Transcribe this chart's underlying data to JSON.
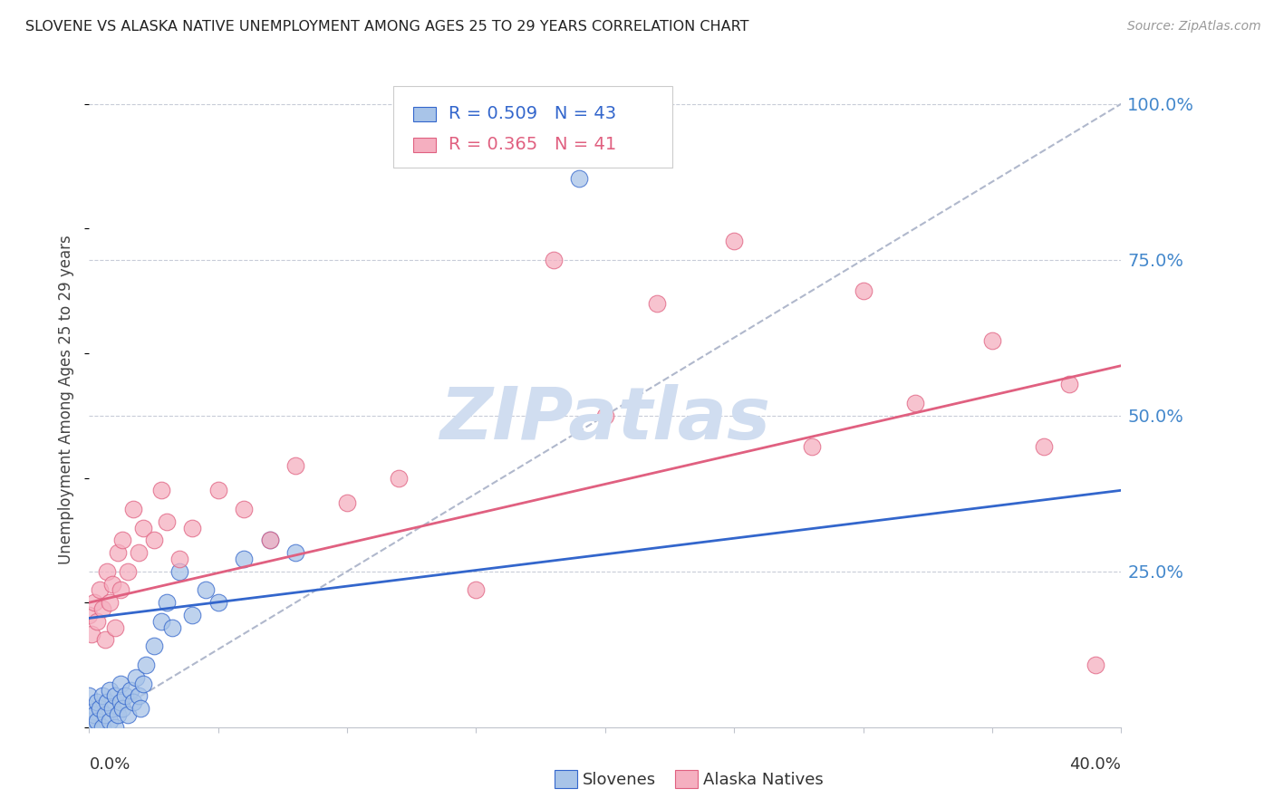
{
  "title": "SLOVENE VS ALASKA NATIVE UNEMPLOYMENT AMONG AGES 25 TO 29 YEARS CORRELATION CHART",
  "source": "Source: ZipAtlas.com",
  "ylabel": "Unemployment Among Ages 25 to 29 years",
  "right_yticks": [
    "100.0%",
    "75.0%",
    "50.0%",
    "25.0%"
  ],
  "right_ytick_vals": [
    1.0,
    0.75,
    0.5,
    0.25
  ],
  "xlim": [
    0.0,
    0.4
  ],
  "ylim": [
    0.0,
    1.05
  ],
  "slovene_color": "#a8c4e8",
  "alaska_color": "#f5afc0",
  "slovene_line_color": "#3366cc",
  "alaska_line_color": "#e06080",
  "dashed_line_color": "#b0b8cc",
  "background_color": "#ffffff",
  "grid_color": "#c8ccd8",
  "watermark_color": "#d0ddf0",
  "watermark_text": "ZIPatlas",
  "slovene_scatter_x": [
    0.0,
    0.0,
    0.0,
    0.0,
    0.001,
    0.002,
    0.003,
    0.003,
    0.004,
    0.005,
    0.005,
    0.006,
    0.007,
    0.008,
    0.008,
    0.009,
    0.01,
    0.01,
    0.011,
    0.012,
    0.012,
    0.013,
    0.014,
    0.015,
    0.016,
    0.017,
    0.018,
    0.019,
    0.02,
    0.021,
    0.022,
    0.025,
    0.028,
    0.03,
    0.032,
    0.035,
    0.04,
    0.045,
    0.05,
    0.06,
    0.07,
    0.08,
    0.19
  ],
  "slovene_scatter_y": [
    0.0,
    0.01,
    0.03,
    0.05,
    0.0,
    0.02,
    0.01,
    0.04,
    0.03,
    0.0,
    0.05,
    0.02,
    0.04,
    0.01,
    0.06,
    0.03,
    0.0,
    0.05,
    0.02,
    0.04,
    0.07,
    0.03,
    0.05,
    0.02,
    0.06,
    0.04,
    0.08,
    0.05,
    0.03,
    0.07,
    0.1,
    0.13,
    0.17,
    0.2,
    0.16,
    0.25,
    0.18,
    0.22,
    0.2,
    0.27,
    0.3,
    0.28,
    0.88
  ],
  "alaska_scatter_x": [
    0.0,
    0.001,
    0.002,
    0.003,
    0.004,
    0.005,
    0.006,
    0.007,
    0.008,
    0.009,
    0.01,
    0.011,
    0.012,
    0.013,
    0.015,
    0.017,
    0.019,
    0.021,
    0.025,
    0.028,
    0.03,
    0.035,
    0.04,
    0.05,
    0.06,
    0.07,
    0.08,
    0.1,
    0.12,
    0.15,
    0.18,
    0.2,
    0.22,
    0.25,
    0.28,
    0.3,
    0.32,
    0.35,
    0.37,
    0.38,
    0.39
  ],
  "alaska_scatter_y": [
    0.18,
    0.15,
    0.2,
    0.17,
    0.22,
    0.19,
    0.14,
    0.25,
    0.2,
    0.23,
    0.16,
    0.28,
    0.22,
    0.3,
    0.25,
    0.35,
    0.28,
    0.32,
    0.3,
    0.38,
    0.33,
    0.27,
    0.32,
    0.38,
    0.35,
    0.3,
    0.42,
    0.36,
    0.4,
    0.22,
    0.75,
    0.5,
    0.68,
    0.78,
    0.45,
    0.7,
    0.52,
    0.62,
    0.45,
    0.55,
    0.1
  ],
  "slovene_line_x0": 0.0,
  "slovene_line_x1": 0.4,
  "slovene_line_y0": 0.175,
  "slovene_line_y1": 0.38,
  "alaska_line_x0": 0.0,
  "alaska_line_x1": 0.4,
  "alaska_line_y0": 0.2,
  "alaska_line_y1": 0.58,
  "dash_line_x0": 0.0,
  "dash_line_x1": 0.4,
  "dash_line_y0": 0.0,
  "dash_line_y1": 1.0
}
